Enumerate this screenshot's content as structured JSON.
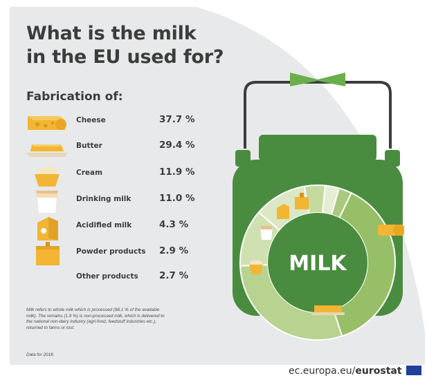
{
  "title_lines": [
    "What is the milk",
    "in the EU used for?"
  ],
  "subtitle": "Fabrication of:",
  "chart_data": {
    "type": "pie",
    "categories": [
      "Cheese",
      "Butter",
      "Cream",
      "Drinking milk",
      "Acidified milk",
      "Powder products",
      "Other products"
    ],
    "values": [
      37.7,
      29.4,
      11.9,
      11.0,
      4.3,
      2.9,
      2.7
    ],
    "value_labels": [
      "37.7 %",
      "29.4 %",
      "11.9 %",
      "11.0 %",
      "4.3 %",
      "2.9 %",
      "2.7 %"
    ],
    "center_label": "MILK",
    "unit": "%"
  },
  "icons": [
    "cheese-icon",
    "butter-icon",
    "cream-icon",
    "drinking-milk-icon",
    "acidified-milk-icon",
    "powder-products-icon",
    "other-products-icon"
  ],
  "note": "Milk refers to whole milk which is processed (98.1 % of the available milk). The remains (1.9 %) is non-processed milk, which is delivered to the national non-dairy industry (agri-food, feedstuff industries etc.), returned to farms or lost.",
  "note_year": "Data for 2018.",
  "footer": {
    "site": "ec.europa.eu/",
    "brand": "eurostat"
  },
  "colors": {
    "background": "#e8e9ea",
    "can_green": "#4a8c3f",
    "ring_inner": "#96bf68",
    "ring_outer": "#dbe7c5",
    "cheese_yellow": "#f2b534",
    "title_text": "#3c3c3c"
  }
}
